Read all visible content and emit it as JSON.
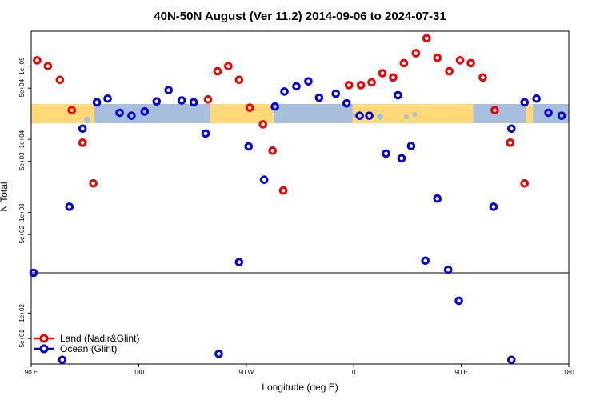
{
  "chart_data": {
    "type": "scatter",
    "title": "40N-50N August (Ver 11.2)   2014-09-06 to 2024-07-31",
    "xlabel": "Longitude (deg E)",
    "ylabel": "N Total",
    "x_ticks": [
      {
        "lon": 90,
        "label": "90 E"
      },
      {
        "lon": 180,
        "label": "180"
      },
      {
        "lon": 270,
        "label": "90 W"
      },
      {
        "lon": 360,
        "label": "0"
      },
      {
        "lon": 450,
        "label": "90 E"
      },
      {
        "lon": 540,
        "label": "180"
      }
    ],
    "xlim": [
      90,
      540
    ],
    "upper_panel": {
      "scale": "log",
      "ylim": [
        150,
        300000
      ],
      "y_ticks": [
        {
          "value": 500,
          "label": "5e+02"
        },
        {
          "value": 1000,
          "label": "1e+03"
        },
        {
          "value": 5000,
          "label": "5e+03"
        },
        {
          "value": 10000,
          "label": "1e+04"
        },
        {
          "value": 50000,
          "label": "5e+04"
        },
        {
          "value": 100000,
          "label": "1e+05"
        }
      ]
    },
    "lower_panel": {
      "scale": "log",
      "ylim": [
        25,
        300
      ],
      "y_ticks": [
        {
          "value": 50,
          "label": "5e+01"
        },
        {
          "value": 100,
          "label": "1e+02"
        }
      ]
    },
    "series": [
      {
        "name": "Land (Nadir&Glint)",
        "color": "#ee0000",
        "points": [
          {
            "x": 95,
            "y": 120000
          },
          {
            "x": 104,
            "y": 100000
          },
          {
            "x": 114,
            "y": 65000
          },
          {
            "x": 124,
            "y": 25000
          },
          {
            "x": 133,
            "y": 9000
          },
          {
            "x": 142,
            "y": 2500
          },
          {
            "x": 238,
            "y": 35000
          },
          {
            "x": 246,
            "y": 85000
          },
          {
            "x": 255,
            "y": 100000
          },
          {
            "x": 264,
            "y": 65000
          },
          {
            "x": 273,
            "y": 27000
          },
          {
            "x": 284,
            "y": 16000
          },
          {
            "x": 292,
            "y": 7000
          },
          {
            "x": 301,
            "y": 2000
          },
          {
            "x": 356,
            "y": 55000
          },
          {
            "x": 366,
            "y": 55000
          },
          {
            "x": 375,
            "y": 60000
          },
          {
            "x": 384,
            "y": 80000
          },
          {
            "x": 393,
            "y": 70000
          },
          {
            "x": 402,
            "y": 110000
          },
          {
            "x": 412,
            "y": 150000
          },
          {
            "x": 421,
            "y": 240000
          },
          {
            "x": 430,
            "y": 130000
          },
          {
            "x": 440,
            "y": 85000
          },
          {
            "x": 449,
            "y": 120000
          },
          {
            "x": 458,
            "y": 110000
          },
          {
            "x": 468,
            "y": 70000
          },
          {
            "x": 478,
            "y": 25000
          },
          {
            "x": 491,
            "y": 9000
          },
          {
            "x": 503,
            "y": 2500
          }
        ]
      },
      {
        "name": "Ocean (Glint)",
        "color": "#0000dd",
        "points": [
          {
            "x": 122,
            "y": 1200
          },
          {
            "x": 133,
            "y": 14000
          },
          {
            "x": 145,
            "y": 32000
          },
          {
            "x": 154,
            "y": 36000
          },
          {
            "x": 164,
            "y": 23000
          },
          {
            "x": 174,
            "y": 21000
          },
          {
            "x": 185,
            "y": 24000
          },
          {
            "x": 195,
            "y": 33000
          },
          {
            "x": 205,
            "y": 47000
          },
          {
            "x": 216,
            "y": 34000
          },
          {
            "x": 226,
            "y": 32000
          },
          {
            "x": 236,
            "y": 12000
          },
          {
            "x": 264,
            "y": 210
          },
          {
            "x": 272,
            "y": 8000
          },
          {
            "x": 285,
            "y": 2800
          },
          {
            "x": 294,
            "y": 28000
          },
          {
            "x": 302,
            "y": 45000
          },
          {
            "x": 312,
            "y": 53000
          },
          {
            "x": 322,
            "y": 62000
          },
          {
            "x": 331,
            "y": 37000
          },
          {
            "x": 345,
            "y": 42000
          },
          {
            "x": 354,
            "y": 31000
          },
          {
            "x": 365,
            "y": 21000
          },
          {
            "x": 373,
            "y": 21000
          },
          {
            "x": 387,
            "y": 6400
          },
          {
            "x": 397,
            "y": 40000
          },
          {
            "x": 400,
            "y": 5500
          },
          {
            "x": 408,
            "y": 8100
          },
          {
            "x": 420,
            "y": 220
          },
          {
            "x": 430,
            "y": 1550
          },
          {
            "x": 477,
            "y": 1200
          },
          {
            "x": 492,
            "y": 14000
          },
          {
            "x": 503,
            "y": 32000
          },
          {
            "x": 513,
            "y": 36000
          },
          {
            "x": 523,
            "y": 23000
          },
          {
            "x": 534,
            "y": 21000
          },
          {
            "x": 92,
            "y": 150
          },
          {
            "x": 116,
            "y": 28
          },
          {
            "x": 247,
            "y": 33
          },
          {
            "x": 439,
            "y": 165
          },
          {
            "x": 448,
            "y": 140
          },
          {
            "x": 492,
            "y": 28
          }
        ]
      }
    ],
    "legend": {
      "placement": "bottom-left",
      "entries": [
        {
          "label": "Land (Nadir&Glint)",
          "color": "#ee0000"
        },
        {
          "label": "Ocean (Glint)",
          "color": "#0000dd"
        }
      ]
    },
    "map_strip": {
      "land_color": "#ffd977",
      "ocean_color": "#a7bfdc"
    }
  }
}
